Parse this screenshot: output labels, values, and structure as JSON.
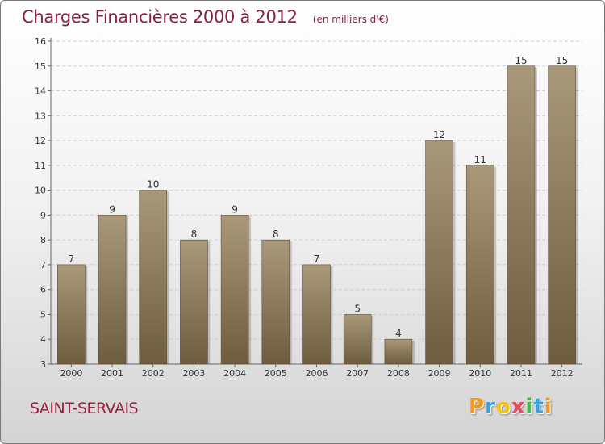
{
  "title": "Charges Financières 2000 à 2012",
  "unit_note": "(en milliers d'€)",
  "town": "SAINT-SERVAIS",
  "logo": {
    "letters": [
      "P",
      "r",
      "o",
      "x",
      "i",
      "t",
      "i"
    ],
    "colors": [
      "#f39a1e",
      "#3aa0d8",
      "#f0c419",
      "#e94b5c",
      "#4cb848",
      "#3aa0d8",
      "#f39a1e"
    ]
  },
  "colors": {
    "bar_top": "#a9987a",
    "bar_bottom": "#6e5c3f",
    "title": "#8a1f3e"
  },
  "chart_data": {
    "type": "bar",
    "title": "Charges Financières 2000 à 2012",
    "subtitle": "(en milliers d'€)",
    "xlabel": "",
    "ylabel": "",
    "categories": [
      "2000",
      "2001",
      "2002",
      "2003",
      "2004",
      "2005",
      "2006",
      "2007",
      "2008",
      "2009",
      "2010",
      "2011",
      "2012"
    ],
    "values": [
      7,
      9,
      10,
      8,
      9,
      8,
      7,
      5,
      4,
      12,
      11,
      15,
      15
    ],
    "ylim": [
      3,
      16
    ],
    "yticks": [
      3,
      4,
      5,
      6,
      7,
      8,
      9,
      10,
      11,
      12,
      13,
      14,
      15,
      16
    ],
    "grid": true,
    "data_labels": true
  }
}
